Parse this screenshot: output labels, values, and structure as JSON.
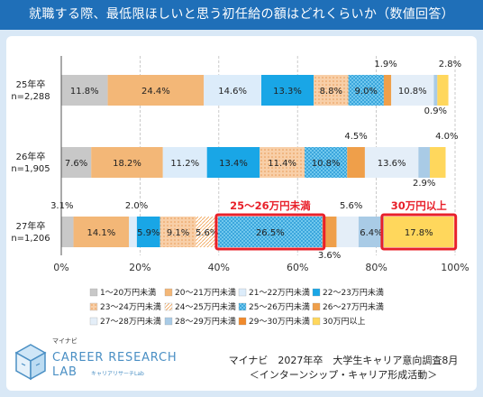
{
  "title": "就職する際、最低限ほしいと思う初任給の額はどれくらいか（数値回答）",
  "colors": {
    "title_bg": "#1f6fb8",
    "frame_bg": "#d9e8f6",
    "highlight": "#e8202a"
  },
  "chart_data": {
    "type": "bar",
    "orientation": "horizontal",
    "stacked": "100%",
    "categories": [
      {
        "label1": "25年卒",
        "label2": "n=2,288"
      },
      {
        "label1": "26年卒",
        "label2": "n=1,905"
      },
      {
        "label1": "27年卒",
        "label2": "n=1,206"
      }
    ],
    "xlim": [
      0,
      100
    ],
    "x_ticks": [
      "0%",
      "20%",
      "40%",
      "60%",
      "80%",
      "100%"
    ],
    "series": [
      {
        "name": "1～20万円未満",
        "color": "#c8c8c8",
        "pattern": "solid",
        "values": [
          11.8,
          7.6,
          3.1
        ]
      },
      {
        "name": "20～21万円未満",
        "color": "#f3b777",
        "pattern": "solid",
        "values": [
          24.4,
          18.2,
          14.1
        ]
      },
      {
        "name": "21～22万円未満",
        "color": "#dcecfa",
        "pattern": "solid",
        "values": [
          14.6,
          11.2,
          2.0
        ]
      },
      {
        "name": "22～23万円未満",
        "color": "#19a6e6",
        "pattern": "solid",
        "values": [
          13.3,
          13.4,
          5.9
        ]
      },
      {
        "name": "23～24万円未満",
        "color": "#f8cfa8",
        "pattern": "dots",
        "values": [
          8.8,
          11.4,
          9.1
        ]
      },
      {
        "name": "24～25万円未満",
        "color": "#ffffff",
        "pattern": "lines",
        "values": [
          0,
          0,
          5.6
        ]
      },
      {
        "name": "25～26万円未満",
        "color": "#71c8ee",
        "pattern": "checker",
        "values": [
          9.0,
          10.8,
          26.5
        ]
      },
      {
        "name": "26～27万円未満",
        "color": "#ef9f4a",
        "pattern": "solid",
        "values": [
          1.9,
          4.5,
          3.6
        ]
      },
      {
        "name": "27～28万円未満",
        "color": "#e4eef8",
        "pattern": "solid",
        "values": [
          10.8,
          13.6,
          5.6
        ]
      },
      {
        "name": "28～29万円未満",
        "color": "#a9cbe6",
        "pattern": "solid",
        "values": [
          0.9,
          2.9,
          6.4
        ]
      },
      {
        "name": "29～30万円未満",
        "color": "#f08a2c",
        "pattern": "solid",
        "values": [
          0,
          0,
          0
        ]
      },
      {
        "name": "30万円以上",
        "color": "#ffd75c",
        "pattern": "solid",
        "values": [
          2.8,
          4.0,
          17.8
        ]
      }
    ],
    "data_labels": [
      [
        "11.8%",
        "24.4%",
        "14.6%",
        "13.3%",
        "8.8%",
        "",
        "9.0%",
        "1.9%",
        "10.8%",
        "0.9%",
        "",
        "2.8%"
      ],
      [
        "7.6%",
        "18.2%",
        "11.2%",
        "13.4%",
        "11.4%",
        "",
        "10.8%",
        "4.5%",
        "13.6%",
        "2.9%",
        "",
        "4.0%"
      ],
      [
        "3.1%",
        "14.1%",
        "2.0%",
        "5.9%",
        "9.1%",
        "5.6%",
        "26.5%",
        "3.6%",
        "5.6%",
        "6.4%",
        "",
        "17.8%"
      ]
    ],
    "annotations": [
      {
        "text": "25～26万円未満",
        "row": 2,
        "series": 6
      },
      {
        "text": "30万円以上",
        "row": 2,
        "series": 11
      }
    ],
    "legend_position": "bottom",
    "grid": true
  },
  "footer": {
    "source_line1": "マイナビ　2027年卒　大学生キャリア意向調査8月",
    "source_line2": "＜インターンシップ・キャリア形成活動＞"
  },
  "logo": {
    "small": "マイナビ",
    "main": "CAREER RESEARCH",
    "lab": "LAB",
    "sub": "キャリアリサーチLab"
  }
}
